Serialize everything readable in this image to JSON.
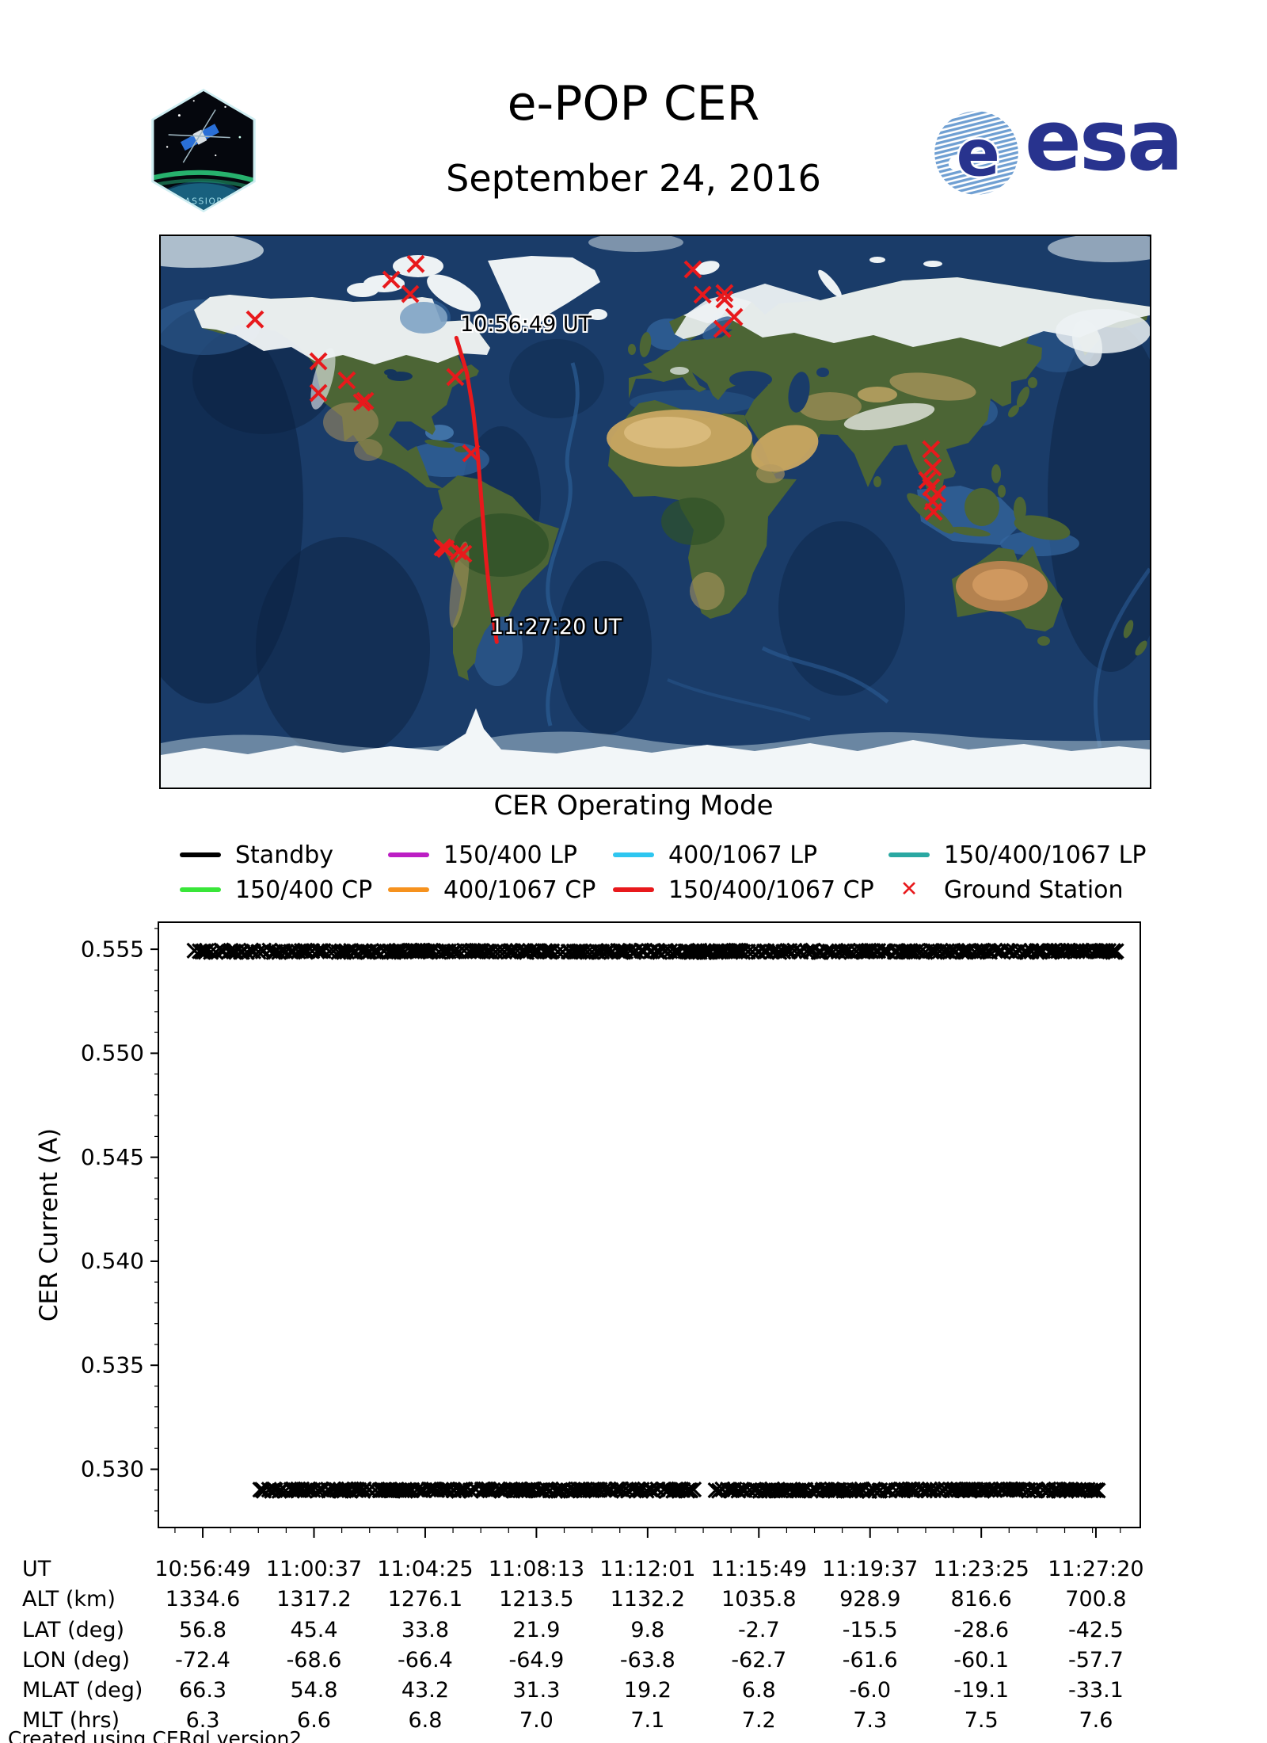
{
  "header": {
    "title": "e-POP CER",
    "date": "September 24, 2016",
    "patch_text": "CASSIOPE",
    "esa_text": "esa"
  },
  "map": {
    "start_label": "10:56:49 UT",
    "end_label": "11:27:20 UT",
    "track_color": "#e8191c",
    "station_color": "#e8191c",
    "track_points": [
      [
        -72.4,
        56.8
      ],
      [
        -68.6,
        45.4
      ],
      [
        -66.4,
        33.8
      ],
      [
        -64.9,
        21.9
      ],
      [
        -63.8,
        9.8
      ],
      [
        -62.7,
        -2.7
      ],
      [
        -61.6,
        -15.5
      ],
      [
        -60.1,
        -28.6
      ],
      [
        -57.7,
        -42.5
      ]
    ],
    "ground_stations": [
      [
        -87.2,
        80.9
      ],
      [
        -96.1,
        75.8
      ],
      [
        -89.2,
        71.1
      ],
      [
        13.7,
        79.1
      ],
      [
        17.2,
        70.9
      ],
      [
        25.2,
        71.4
      ],
      [
        25.2,
        69.3
      ],
      [
        28.7,
        63.6
      ],
      [
        24.4,
        59.7
      ],
      [
        -145.7,
        62.8
      ],
      [
        -122.6,
        49.1
      ],
      [
        -112.3,
        42.9
      ],
      [
        -122.6,
        38.8
      ],
      [
        -106.8,
        35.7
      ],
      [
        -105.6,
        36.2
      ],
      [
        -72.8,
        44.0
      ],
      [
        -67.0,
        19.1
      ],
      [
        -77.4,
        -11.6
      ],
      [
        -76.3,
        -12.1
      ],
      [
        -71.6,
        -12.9
      ],
      [
        -69.9,
        -13.7
      ],
      [
        100.4,
        20.4
      ],
      [
        101.0,
        14.5
      ],
      [
        99.0,
        10.3
      ],
      [
        100.4,
        8.0
      ],
      [
        102.7,
        5.9
      ],
      [
        101.0,
        3.4
      ],
      [
        101.3,
        0.0
      ]
    ]
  },
  "legend": {
    "title": "CER Operating Mode",
    "items": [
      {
        "label": "Standby",
        "color": "#000000",
        "type": "line"
      },
      {
        "label": "150/400 LP",
        "color": "#bc1ec4",
        "type": "line"
      },
      {
        "label": "400/1067 LP",
        "color": "#2ec6f0",
        "type": "line"
      },
      {
        "label": "150/400/1067 LP",
        "color": "#2aa8a2",
        "type": "line"
      },
      {
        "label": "150/400 CP",
        "color": "#39e639",
        "type": "line"
      },
      {
        "label": "400/1067 CP",
        "color": "#f6921e",
        "type": "line"
      },
      {
        "label": "150/400/1067 CP",
        "color": "#e8191c",
        "type": "line"
      },
      {
        "label": "Ground Station",
        "color": "#e8191c",
        "type": "x"
      }
    ]
  },
  "chart_data": {
    "type": "scatter",
    "title": "",
    "xlabel": "",
    "ylabel": "CER Current (A)",
    "ylim": [
      0.5272,
      0.5563
    ],
    "yticks": [
      0.53,
      0.535,
      0.54,
      0.545,
      0.55,
      0.555
    ],
    "y_minor_step": 0.001,
    "x_axis_range": [
      "10:55:18",
      "11:28:51"
    ],
    "x_ticks": [
      "10:56:49",
      "11:00:37",
      "11:04:25",
      "11:08:13",
      "11:12:01",
      "11:15:49",
      "11:19:37",
      "11:23:25",
      "11:27:20"
    ],
    "x_minors_per_interval": 3,
    "marker": "x",
    "marker_color": "#000000",
    "mode": "Standby",
    "grid": false,
    "legend_position": "above-plot",
    "bands": [
      {
        "y": 0.5549,
        "start": "10:56:34",
        "end": "11:28:03",
        "gaps": []
      },
      {
        "y": 0.529,
        "start": "10:58:47",
        "end": "11:27:29",
        "gaps": [
          [
            "11:13:41",
            "11:14:20"
          ]
        ]
      }
    ]
  },
  "table": {
    "rows": [
      {
        "label": "UT",
        "values": [
          "10:56:49",
          "11:00:37",
          "11:04:25",
          "11:08:13",
          "11:12:01",
          "11:15:49",
          "11:19:37",
          "11:23:25",
          "11:27:20"
        ]
      },
      {
        "label": "ALT (km)",
        "values": [
          "1334.6",
          "1317.2",
          "1276.1",
          "1213.5",
          "1132.2",
          "1035.8",
          "928.9",
          "816.6",
          "700.8"
        ]
      },
      {
        "label": "LAT (deg)",
        "values": [
          "56.8",
          "45.4",
          "33.8",
          "21.9",
          "9.8",
          "-2.7",
          "-15.5",
          "-28.6",
          "-42.5"
        ]
      },
      {
        "label": "LON (deg)",
        "values": [
          "-72.4",
          "-68.6",
          "-66.4",
          "-64.9",
          "-63.8",
          "-62.7",
          "-61.6",
          "-60.1",
          "-57.7"
        ]
      },
      {
        "label": "MLAT (deg)",
        "values": [
          "66.3",
          "54.8",
          "43.2",
          "31.3",
          "19.2",
          "6.8",
          "-6.0",
          "-19.1",
          "-33.1"
        ]
      },
      {
        "label": "MLT (hrs)",
        "values": [
          "6.3",
          "6.6",
          "6.8",
          "7.0",
          "7.1",
          "7.2",
          "7.3",
          "7.5",
          "7.6"
        ]
      }
    ]
  },
  "footer": "Created using CERql version2"
}
